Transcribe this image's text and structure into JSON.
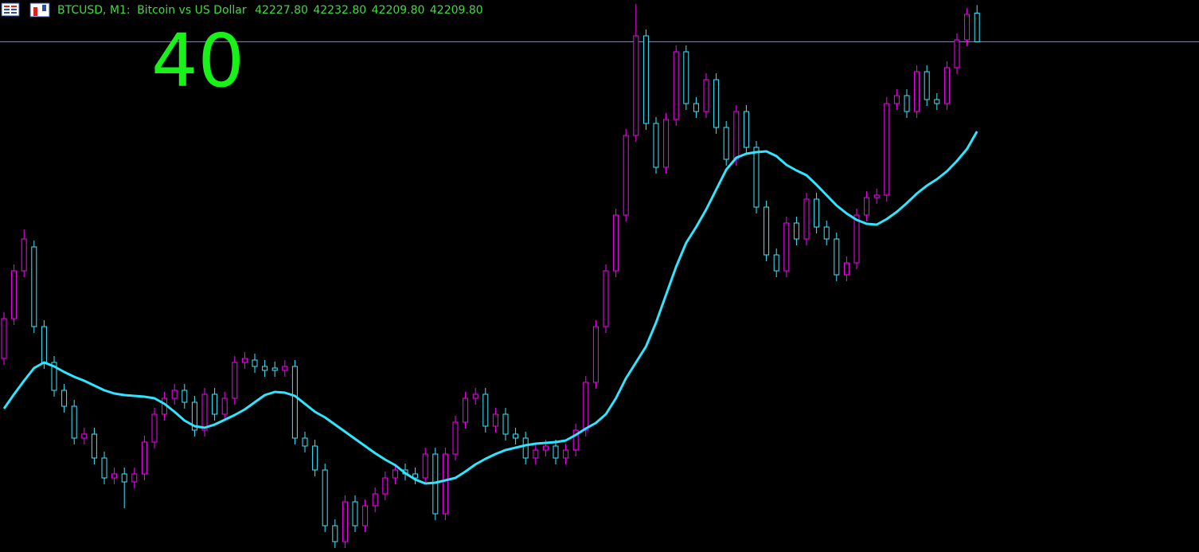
{
  "chart_data": {
    "type": "candlestick",
    "header": {
      "symbol": "BTCUSD, M1:",
      "description": "Bitcoin vs US Dollar",
      "ohlc_labels": [
        "42227.80",
        "42232.80",
        "42209.80",
        "42209.80"
      ]
    },
    "annotation": "40",
    "ylim": [
      41889.5,
      42236
    ],
    "bull_color": "#ff00ff",
    "bear_color": "#3ee8ff",
    "background": "#000000",
    "open": [
      42011,
      42036,
      42066,
      42081,
      42031,
      42008.5,
      41991,
      41981,
      41961,
      41963.5,
      41948.5,
      41936,
      41938.5,
      41933.5,
      41938.5,
      41958.5,
      41976,
      41986,
      41991,
      41983.5,
      41966,
      41988.5,
      41976,
      41986,
      42008.5,
      42010,
      42006,
      42005,
      42003.5,
      42006,
      41961,
      41956,
      41941,
      41906,
      41896,
      41921,
      41906,
      41918.5,
      41926,
      41936,
      41941,
      41938.5,
      41936,
      41951,
      41913.5,
      41951,
      41971,
      41986,
      41988.5,
      41968.5,
      41976,
      41963.5,
      41961,
      41948.5,
      41953.5,
      41956,
      41948.5,
      41953.5,
      41966,
      41996,
      42031,
      42066,
      42101,
      42151,
      42213.5,
      42158.5,
      42131,
      42161,
      42203.5,
      42171,
      42166,
      42186,
      42156,
      42136,
      42166,
      42143.5,
      42106,
      42076,
      42066,
      42096,
      42086,
      42111,
      42093.5,
      42086,
      42063.5,
      42071,
      42101,
      42112,
      42113.5,
      42171,
      42176,
      42166,
      42191,
      42173.5,
      42171,
      42193.5,
      42211,
      42227.8
    ],
    "high": [
      42040,
      42070,
      42092,
      42085,
      42035,
      42012.5,
      41995,
      41985,
      41967.5,
      41967.5,
      41952.5,
      41942.5,
      41942.5,
      41942.5,
      41962.5,
      41980,
      41990,
      41995,
      41995,
      41987.5,
      41992.5,
      41992.5,
      41990,
      42012.5,
      42015,
      42014,
      42010,
      42009,
      42010,
      42010,
      41965,
      41960,
      41945,
      41910,
      41925,
      41925,
      41922.5,
      41930,
      41940,
      41945,
      41945,
      41942.5,
      41955,
      41955,
      41955,
      41975,
      41990,
      41992.5,
      41992.5,
      41980,
      41980,
      41967.5,
      41965,
      41957.5,
      41960,
      41960,
      41957.5,
      41970,
      42000,
      42035,
      42070,
      42105,
      42155,
      42233.5,
      42217.5,
      42162.5,
      42165,
      42207.5,
      42207.5,
      42175,
      42190,
      42190,
      42160,
      42170,
      42170,
      42147.5,
      42110,
      42080,
      42100,
      42100,
      42115,
      42115,
      42097.5,
      42090,
      42075,
      42105,
      42116,
      42117.5,
      42175,
      42180,
      42180,
      42195,
      42195,
      42177.5,
      42197.5,
      42215,
      42231,
      42232.8
    ],
    "low": [
      42007,
      42032,
      42062,
      42027,
      42004.5,
      41987,
      41977,
      41957,
      41957,
      41944.5,
      41932,
      41932,
      41917,
      41929.5,
      41934.5,
      41954.5,
      41972,
      41982,
      41979.5,
      41962,
      41962,
      41972,
      41972,
      41982,
      42004.5,
      42002,
      41999.5,
      41999.5,
      41999.5,
      41957,
      41952,
      41937,
      41902,
      41892,
      41892,
      41902,
      41902,
      41914.5,
      41922,
      41932,
      41934.5,
      41932,
      41932,
      41909.5,
      41909.5,
      41947,
      41967,
      41982,
      41964.5,
      41964.5,
      41959.5,
      41957,
      41944.5,
      41944.5,
      41949.5,
      41944.5,
      41944.5,
      41949.5,
      41962,
      41992,
      42027,
      42062,
      42097,
      42147,
      42154.5,
      42127,
      42127,
      42157,
      42167,
      42162,
      42162,
      42152,
      42132,
      42132,
      42139.5,
      42102,
      42072,
      42062,
      42062,
      42082,
      42082,
      42089.5,
      42082,
      42059.5,
      42059.5,
      42067,
      42097,
      42108,
      42109.5,
      42167,
      42162,
      42162,
      42169.5,
      42167,
      42167,
      42189.5,
      42207,
      42209.8
    ],
    "close": [
      42036,
      42066,
      42086,
      42031,
      42008.5,
      41991,
      41981,
      41961,
      41963.5,
      41948.5,
      41936,
      41938.5,
      41933.5,
      41938.5,
      41958.5,
      41976,
      41986,
      41991,
      41983.5,
      41966,
      41988.5,
      41976,
      41986,
      42008.5,
      42011,
      42006,
      42003.5,
      42003.5,
      42006,
      41961,
      41956,
      41941,
      41906,
      41896,
      41921,
      41906,
      41918.5,
      41926,
      41936,
      41941,
      41938.5,
      41936,
      41951,
      41913.5,
      41951,
      41971,
      41986,
      41988.5,
      41968.5,
      41976,
      41963.5,
      41961,
      41948.5,
      41953.5,
      41956,
      41948.5,
      41953.5,
      41966,
      41996,
      42031,
      42066,
      42101,
      42151,
      42213.5,
      42158.5,
      42131,
      42161,
      42203.5,
      42171,
      42166,
      42186,
      42156,
      42136,
      42166,
      42143.5,
      42106,
      42076,
      42066,
      42096,
      42086,
      42111,
      42093.5,
      42086,
      42063.5,
      42071,
      42101,
      42112,
      42113.5,
      42171,
      42176,
      42166,
      42191,
      42173.5,
      42171,
      42193.5,
      42211,
      42227,
      42209.8
    ],
    "moving_average": {
      "color": "#2ee6ff",
      "values": [
        41979.5,
        41988.5,
        41997,
        42005,
        42008.5,
        42006,
        42002.5,
        41999.5,
        41997,
        41994,
        41991,
        41989,
        41988,
        41987.5,
        41987,
        41986,
        41982.5,
        41977.5,
        41972,
        41968.5,
        41967.5,
        41969.5,
        41972.5,
        41975.5,
        41979,
        41983.5,
        41988,
        41990,
        41989.5,
        41987.5,
        41982.5,
        41977.5,
        41974,
        41969.5,
        41965,
        41960.5,
        41956,
        41951.5,
        41947.5,
        41944,
        41939,
        41935,
        41932.5,
        41933,
        41934.5,
        41936,
        41940,
        41944.5,
        41948,
        41951,
        41953.5,
        41955,
        41956.5,
        41957.5,
        41958,
        41958.5,
        41959.5,
        41963,
        41967,
        41970.5,
        41976,
        41986,
        41998.5,
        42008.5,
        42018.5,
        42033.5,
        42051,
        42068.5,
        42083.5,
        42093.5,
        42104.5,
        42117,
        42129.5,
        42137,
        42139.5,
        42140.5,
        42141,
        42138,
        42132.5,
        42129,
        42126,
        42120,
        42113.5,
        42107,
        42102,
        42098,
        42095.5,
        42095,
        42098.5,
        42103,
        42108.5,
        42114.5,
        42119.5,
        42123.5,
        42128.5,
        42135,
        42142.5,
        42153.5
      ]
    },
    "price_line": {
      "value": 42209.8,
      "color": "#8e8ea8"
    }
  }
}
